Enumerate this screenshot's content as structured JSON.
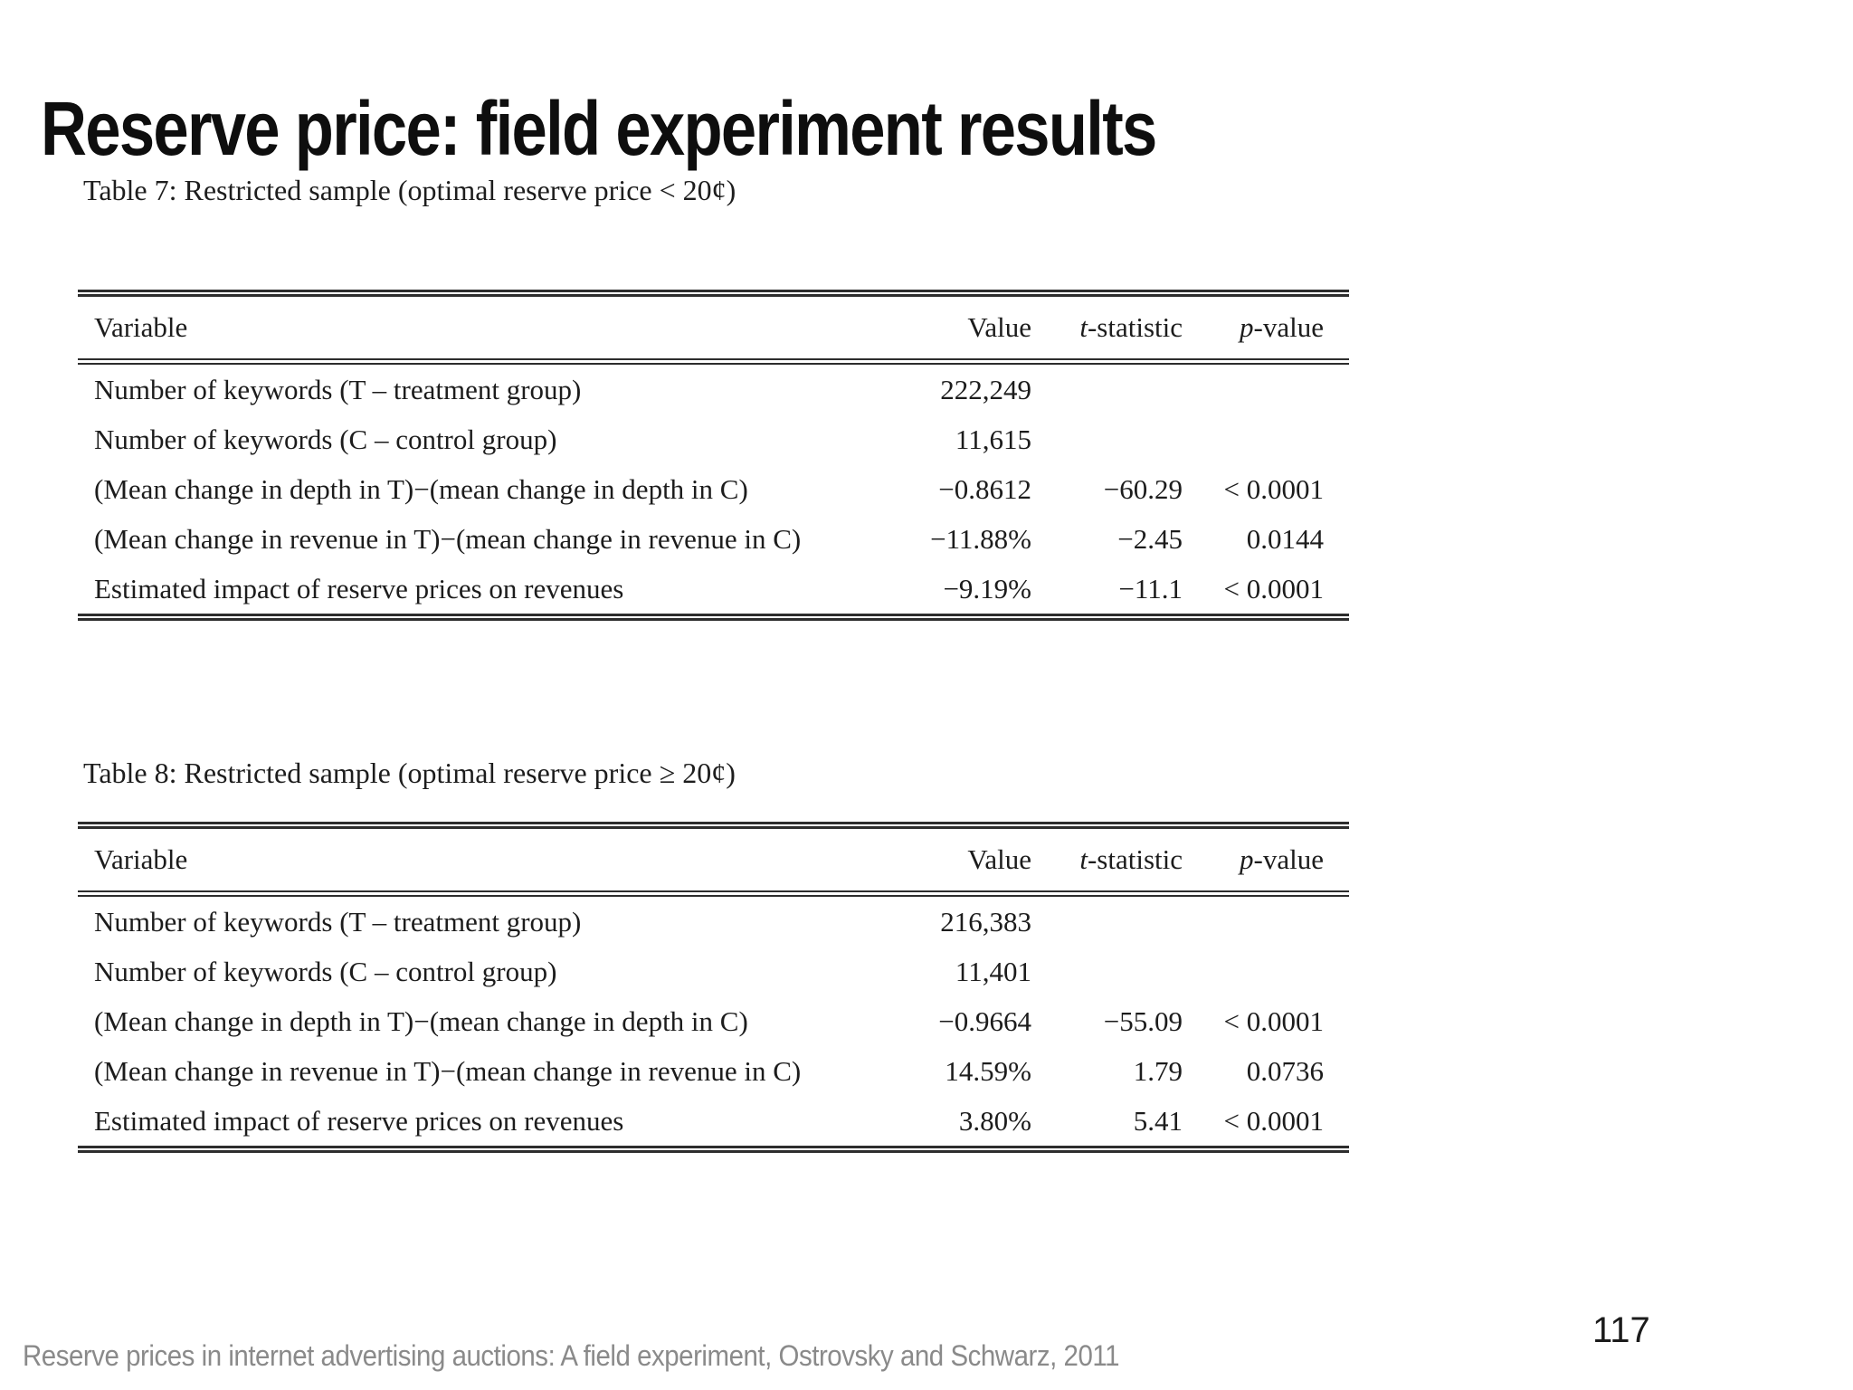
{
  "slide": {
    "title": "Reserve price: field experiment results",
    "footer_citation": "Reserve prices in internet advertising auctions: A field experiment, Ostrovsky and Schwarz, 2011",
    "page_number": "117",
    "colors": {
      "text": "#1c1c1c",
      "footer_text": "#8a8a8a",
      "background": "#ffffff",
      "table_rule": "#2d2d2d"
    }
  },
  "tables": [
    {
      "caption": "Table 7: Restricted sample (optimal reserve price < 20¢)",
      "columns": [
        {
          "italic": "",
          "label": "Variable"
        },
        {
          "italic": "",
          "label": "Value"
        },
        {
          "italic": "t",
          "label": "-statistic"
        },
        {
          "italic": "p",
          "label": "-value"
        }
      ],
      "rows": [
        [
          "Number of keywords (T – treatment group)",
          "222,249",
          "",
          ""
        ],
        [
          "Number of keywords (C – control group)",
          "11,615",
          "",
          ""
        ],
        [
          "(Mean change in depth in T)−(mean change in depth in C)",
          "−0.8612",
          "−60.29",
          "< 0.0001"
        ],
        [
          "(Mean change in revenue in T)−(mean change in revenue in C)",
          "−11.88%",
          "−2.45",
          "0.0144"
        ],
        [
          "Estimated impact of reserve prices on revenues",
          "−9.19%",
          "−11.1",
          "< 0.0001"
        ]
      ]
    },
    {
      "caption": "Table 8: Restricted sample (optimal reserve price ≥ 20¢)",
      "columns": [
        {
          "italic": "",
          "label": "Variable"
        },
        {
          "italic": "",
          "label": "Value"
        },
        {
          "italic": "t",
          "label": "-statistic"
        },
        {
          "italic": "p",
          "label": "-value"
        }
      ],
      "rows": [
        [
          "Number of keywords (T – treatment group)",
          "216,383",
          "",
          ""
        ],
        [
          "Number of keywords (C – control group)",
          "11,401",
          "",
          ""
        ],
        [
          "(Mean change in depth in T)−(mean change in depth in C)",
          "−0.9664",
          "−55.09",
          "< 0.0001"
        ],
        [
          "(Mean change in revenue in T)−(mean change in revenue in C)",
          "14.59%",
          "1.79",
          "0.0736"
        ],
        [
          "Estimated impact of reserve prices on revenues",
          "3.80%",
          "5.41",
          "< 0.0001"
        ]
      ]
    }
  ]
}
